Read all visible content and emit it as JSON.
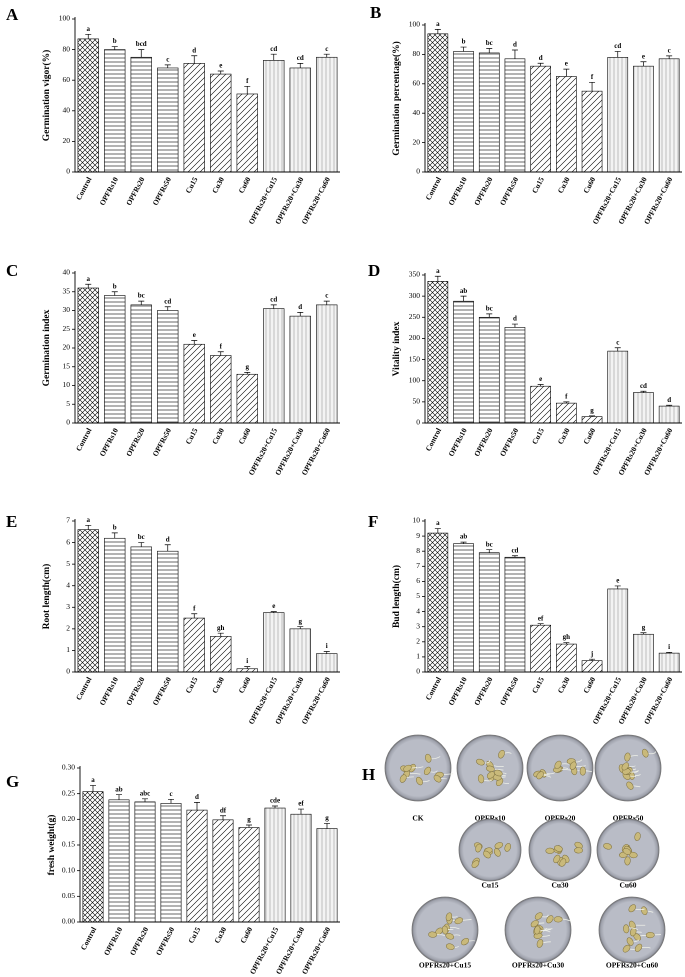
{
  "chart_data": [
    {
      "type": "bar",
      "panel": "A",
      "ylabel": "Germination vigor(%)",
      "categories": [
        "Control",
        "OPFRs10",
        "OPFRs20",
        "OPFRs50",
        "Cu15",
        "Cu30",
        "Cu60",
        "OPFRs20+Cu15",
        "OPFRs20+Cu30",
        "OPFRs20+Cu60"
      ],
      "values": [
        87,
        80,
        75,
        68,
        71,
        64,
        51,
        73,
        68,
        75
      ],
      "errors": [
        3,
        2,
        5,
        2,
        5,
        2,
        5,
        4,
        3,
        2
      ],
      "letters": [
        "a",
        "b",
        "bcd",
        "c",
        "d",
        "e",
        "f",
        "cd",
        "cd",
        "c"
      ],
      "patterns": [
        "cross",
        "horizontal",
        "horizontal",
        "horizontal",
        "diagonal",
        "diagonal",
        "diagonal",
        "vertical",
        "vertical",
        "vertical"
      ],
      "ylim": [
        0,
        100
      ],
      "yticks": [
        0,
        20,
        40,
        60,
        80,
        100
      ]
    },
    {
      "type": "bar",
      "panel": "B",
      "ylabel": "Germination percentage(%)",
      "categories": [
        "Control",
        "OPFRs10",
        "OPFRs20",
        "OPFRs50",
        "Cu15",
        "Cu30",
        "Cu60",
        "OPFRs20+Cu15",
        "OPFRs20+Cu30",
        "OPFRs20+Cu60"
      ],
      "values": [
        94,
        82,
        81,
        77,
        72,
        65,
        55,
        78,
        72,
        77
      ],
      "errors": [
        3,
        3,
        3,
        6,
        2,
        5,
        6,
        4,
        3,
        2
      ],
      "letters": [
        "a",
        "b",
        "bc",
        "d",
        "d",
        "e",
        "f",
        "cd",
        "e",
        "c"
      ],
      "patterns": [
        "cross",
        "horizontal",
        "horizontal",
        "horizontal",
        "diagonal",
        "diagonal",
        "diagonal",
        "vertical",
        "vertical",
        "vertical"
      ],
      "ylim": [
        0,
        100
      ],
      "yticks": [
        0,
        20,
        40,
        60,
        80,
        100
      ]
    },
    {
      "type": "bar",
      "panel": "C",
      "ylabel": "Germination index",
      "categories": [
        "Control",
        "OPFRs10",
        "OPFRs20",
        "OPFRs50",
        "Cu15",
        "Cu30",
        "Cu60",
        "OPFRs20+Cu15",
        "OPFRs20+Cu30",
        "OPFRs20+Cu60"
      ],
      "values": [
        36,
        34,
        31.5,
        30,
        21,
        18,
        13,
        30.5,
        28.5,
        31.5
      ],
      "errors": [
        1,
        1,
        1,
        1,
        1,
        1,
        0.5,
        1,
        1,
        1
      ],
      "letters": [
        "a",
        "b",
        "bc",
        "cd",
        "e",
        "f",
        "g",
        "cd",
        "d",
        "c"
      ],
      "patterns": [
        "cross",
        "horizontal",
        "horizontal",
        "horizontal",
        "diagonal",
        "diagonal",
        "diagonal",
        "vertical",
        "vertical",
        "vertical"
      ],
      "ylim": [
        0,
        40
      ],
      "yticks": [
        0,
        5,
        10,
        15,
        20,
        25,
        30,
        35,
        40
      ]
    },
    {
      "type": "bar",
      "panel": "D",
      "ylabel": "Vitality index",
      "categories": [
        "Control",
        "OPFRs10",
        "OPFRs20",
        "OPFRs50",
        "Cu15",
        "Cu30",
        "Cu60",
        "OPFRs20+Cu15",
        "OPFRs20+Cu30",
        "OPFRs20+Cu60"
      ],
      "values": [
        335,
        288,
        250,
        226,
        87,
        47,
        15,
        170,
        72,
        40
      ],
      "errors": [
        12,
        12,
        8,
        8,
        4,
        3,
        2,
        8,
        3,
        2
      ],
      "letters": [
        "a",
        "ab",
        "bc",
        "d",
        "e",
        "f",
        "g",
        "c",
        "cd",
        "d"
      ],
      "patterns": [
        "cross",
        "horizontal",
        "horizontal",
        "horizontal",
        "diagonal",
        "diagonal",
        "diagonal",
        "vertical",
        "vertical",
        "vertical"
      ],
      "ylim": [
        0,
        350
      ],
      "yticks": [
        0,
        50,
        100,
        150,
        200,
        250,
        300,
        350
      ]
    },
    {
      "type": "bar",
      "panel": "E",
      "ylabel": "Root length(cm)",
      "categories": [
        "Control",
        "OPFRs10",
        "OPFRs20",
        "OPFRs50",
        "Cu15",
        "Cu30",
        "Cu60",
        "OPFRs20+Cu15",
        "OPFRs20+Cu30",
        "OPFRs20+Cu60"
      ],
      "values": [
        6.6,
        6.2,
        5.8,
        5.6,
        2.5,
        1.65,
        0.15,
        2.75,
        2.0,
        0.85
      ],
      "errors": [
        0.2,
        0.25,
        0.2,
        0.3,
        0.2,
        0.15,
        0.1,
        0.05,
        0.1,
        0.1
      ],
      "letters": [
        "a",
        "b",
        "bc",
        "d",
        "f",
        "gh",
        "i",
        "e",
        "g",
        "i"
      ],
      "patterns": [
        "cross",
        "horizontal",
        "horizontal",
        "horizontal",
        "diagonal",
        "diagonal",
        "diagonal",
        "vertical",
        "vertical",
        "vertical"
      ],
      "ylim": [
        0,
        7
      ],
      "yticks": [
        0,
        1,
        2,
        3,
        4,
        5,
        6,
        7
      ]
    },
    {
      "type": "bar",
      "panel": "F",
      "ylabel": "Bud length(cm)",
      "categories": [
        "Control",
        "OPFRs10",
        "OPFRs20",
        "OPFRs50",
        "Cu15",
        "Cu30",
        "Cu60",
        "OPFRs20+Cu15",
        "OPFRs20+Cu30",
        "OPFRs20+Cu60"
      ],
      "values": [
        9.2,
        8.5,
        7.9,
        7.6,
        3.1,
        1.85,
        0.75,
        5.5,
        2.5,
        1.25
      ],
      "errors": [
        0.3,
        0.1,
        0.2,
        0.1,
        0.1,
        0.1,
        0.1,
        0.2,
        0.1,
        0.05
      ],
      "letters": [
        "a",
        "ab",
        "bc",
        "cd",
        "ef",
        "gh",
        "j",
        "e",
        "g",
        "i"
      ],
      "patterns": [
        "cross",
        "horizontal",
        "horizontal",
        "horizontal",
        "diagonal",
        "diagonal",
        "diagonal",
        "vertical",
        "vertical",
        "vertical"
      ],
      "ylim": [
        0,
        10
      ],
      "yticks": [
        0,
        1,
        2,
        3,
        4,
        5,
        6,
        7,
        8,
        9,
        10
      ]
    },
    {
      "type": "bar",
      "panel": "G",
      "ylabel": "fresh weight(g)",
      "categories": [
        "Control",
        "OPFRs10",
        "OPFRs20",
        "OPFRs50",
        "Cu15",
        "Cu30",
        "Cu60",
        "OPFRs20+Cu15",
        "OPFRs20+Cu30",
        "OPFRs20+Cu60"
      ],
      "values": [
        0.254,
        0.238,
        0.234,
        0.231,
        0.218,
        0.199,
        0.184,
        0.222,
        0.21,
        0.182
      ],
      "errors": [
        0.012,
        0.01,
        0.006,
        0.008,
        0.015,
        0.008,
        0.005,
        0.004,
        0.01,
        0.01
      ],
      "letters": [
        "a",
        "ab",
        "abc",
        "c",
        "d",
        "df",
        "g",
        "cde",
        "ef",
        "g"
      ],
      "patterns": [
        "cross",
        "horizontal",
        "horizontal",
        "horizontal",
        "diagonal",
        "diagonal",
        "diagonal",
        "vertical",
        "vertical",
        "vertical"
      ],
      "ylim": [
        0,
        0.3
      ],
      "yticks": [
        {
          "value": 0,
          "label": "0.00"
        },
        0.05,
        {
          "value": 0.1,
          "label": "0.10"
        },
        0.15,
        {
          "value": 0.2,
          "label": "0.20"
        },
        0.25,
        {
          "value": 0.3,
          "label": "0.30"
        }
      ]
    }
  ],
  "photo_panel": {
    "panel": "H",
    "labels": [
      "CK",
      "OPFRs10",
      "OPFRs20",
      "OPFRs50",
      "Cu15",
      "Cu30",
      "Cu60",
      "OPFRs20+Cu15",
      "OPFRs20+Cu30",
      "OPFRs20+Cu60"
    ]
  }
}
